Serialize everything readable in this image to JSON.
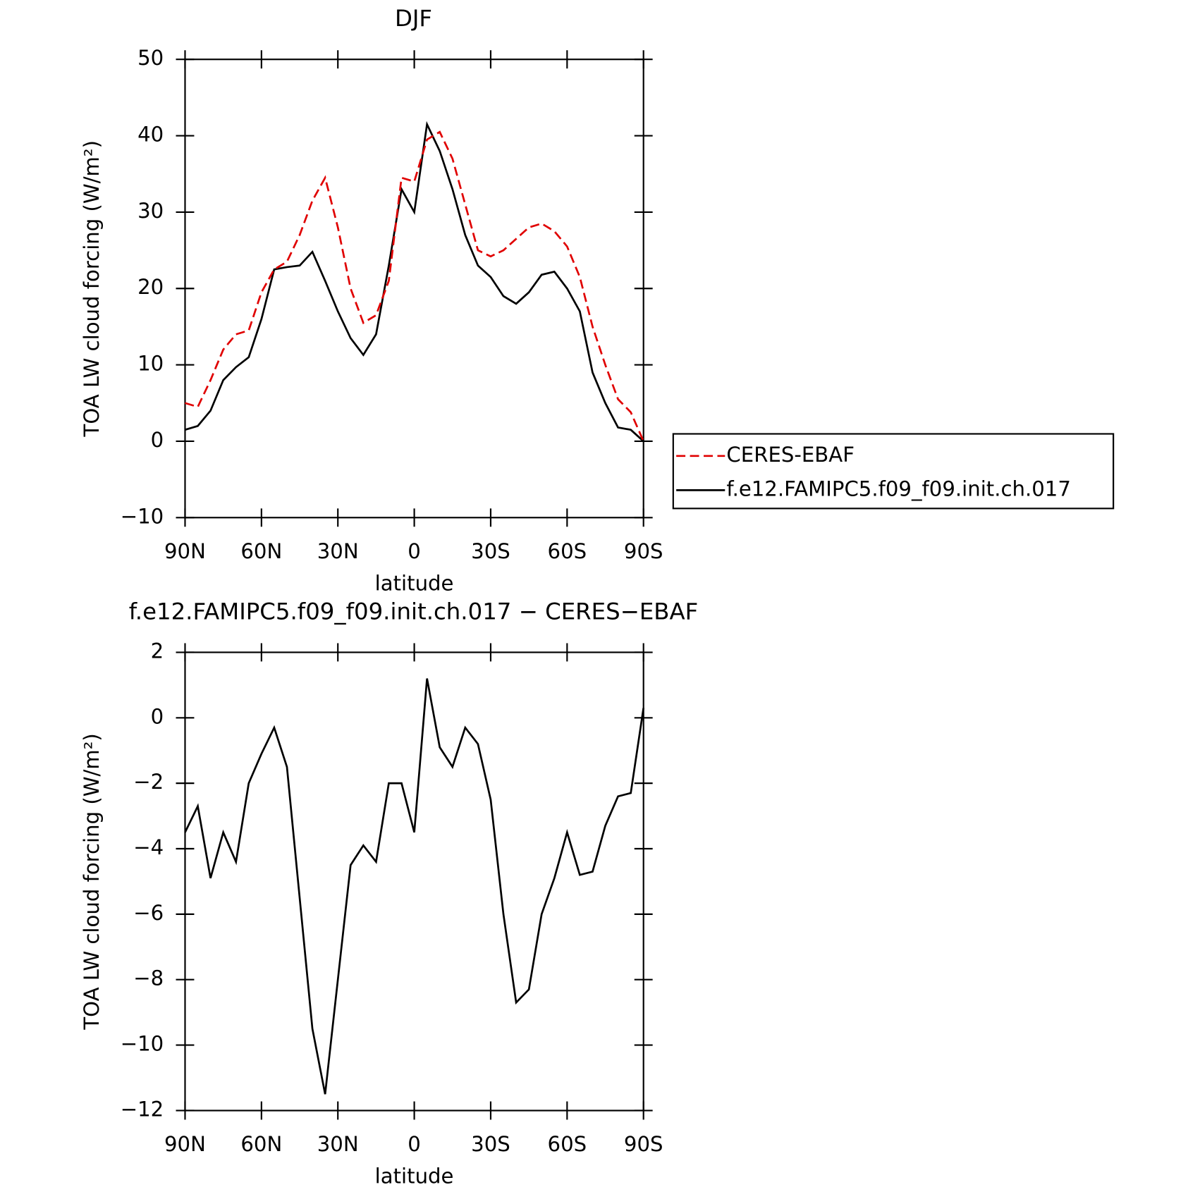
{
  "chart_data": [
    {
      "type": "line",
      "title": "DJF",
      "xlabel": "latitude",
      "ylabel": "TOA LW cloud forcing (W/m²)",
      "x": [
        90,
        85,
        80,
        75,
        70,
        65,
        60,
        55,
        50,
        45,
        40,
        35,
        30,
        25,
        20,
        15,
        10,
        5,
        0,
        -5,
        -10,
        -15,
        -20,
        -25,
        -30,
        -35,
        -40,
        -45,
        -50,
        -55,
        -60,
        -65,
        -70,
        -75,
        -80,
        -85,
        -90
      ],
      "series": [
        {
          "name": "CERES-EBAF",
          "color": "#e00000",
          "dashed": true,
          "values": [
            5,
            4.5,
            8,
            12,
            14,
            14.5,
            19.5,
            22.5,
            23.5,
            27,
            31.5,
            34.5,
            28,
            20,
            15.5,
            16.5,
            21,
            34.5,
            34,
            39.5,
            40.5,
            37,
            31,
            25,
            24.2,
            25,
            26.5,
            28,
            28.5,
            27.5,
            25.5,
            21.5,
            15,
            10,
            5.5,
            3.8,
            0
          ]
        },
        {
          "name": "f.e12.FAMIPC5.f09_f09.init.ch.017",
          "color": "#000000",
          "dashed": false,
          "values": [
            1.5,
            2,
            4,
            8,
            9.7,
            11,
            16,
            22.5,
            22.8,
            23,
            24.8,
            21,
            17,
            13.5,
            11.3,
            14,
            23,
            33,
            30,
            41.5,
            38,
            33,
            27,
            23,
            21.5,
            19,
            18,
            19.5,
            21.8,
            22.2,
            20,
            17,
            9,
            5,
            1.8,
            1.5,
            0
          ]
        }
      ],
      "xlim": [
        90,
        -90
      ],
      "xticks": [
        {
          "value": 90,
          "label": "90N"
        },
        {
          "value": 60,
          "label": "60N"
        },
        {
          "value": 30,
          "label": "30N"
        },
        0,
        {
          "value": -30,
          "label": "30S"
        },
        {
          "value": -60,
          "label": "60S"
        },
        {
          "value": -90,
          "label": "90S"
        }
      ],
      "ylim": [
        -10,
        50
      ],
      "yticks": [
        {
          "value": -10,
          "label": "−10"
        },
        0,
        10,
        20,
        30,
        40,
        50
      ],
      "legend": "outside-right"
    },
    {
      "type": "line",
      "title": "f.e12.FAMIPC5.f09_f09.init.ch.017 − CERES−EBAF",
      "xlabel": "latitude",
      "ylabel": "TOA LW cloud forcing (W/m²)",
      "x": [
        90,
        85,
        80,
        75,
        70,
        65,
        60,
        55,
        50,
        45,
        40,
        35,
        30,
        25,
        20,
        15,
        10,
        5,
        0,
        -5,
        -10,
        -15,
        -20,
        -25,
        -30,
        -35,
        -40,
        -45,
        -50,
        -55,
        -60,
        -65,
        -70,
        -75,
        -80,
        -85,
        -90
      ],
      "color": "#000000",
      "values": [
        -3.5,
        -2.7,
        -4.9,
        -3.5,
        -4.4,
        -2,
        -1.1,
        -0.3,
        -1.5,
        -5.5,
        -9.5,
        -11.5,
        -8,
        -4.5,
        -3.9,
        -4.4,
        -2,
        -2,
        -3.5,
        1.2,
        -0.9,
        -1.5,
        -0.3,
        -0.8,
        -2.5,
        -6,
        -8.7,
        -8.3,
        -6,
        -4.9,
        -3.5,
        -4.8,
        -4.7,
        -3.3,
        -2.4,
        -2.3,
        0.3
      ],
      "xlim": [
        90,
        -90
      ],
      "xticks": [
        {
          "value": 90,
          "label": "90N"
        },
        {
          "value": 60,
          "label": "60N"
        },
        {
          "value": 30,
          "label": "30N"
        },
        0,
        {
          "value": -30,
          "label": "30S"
        },
        {
          "value": -60,
          "label": "60S"
        },
        {
          "value": -90,
          "label": "90S"
        }
      ],
      "ylim": [
        -12,
        2
      ],
      "yticks": [
        {
          "value": -12,
          "label": "−12"
        },
        {
          "value": -10,
          "label": "−10"
        },
        {
          "value": -8,
          "label": "−8"
        },
        {
          "value": -6,
          "label": "−6"
        },
        {
          "value": -4,
          "label": "−4"
        },
        {
          "value": -2,
          "label": "−2"
        },
        0,
        2
      ]
    }
  ]
}
